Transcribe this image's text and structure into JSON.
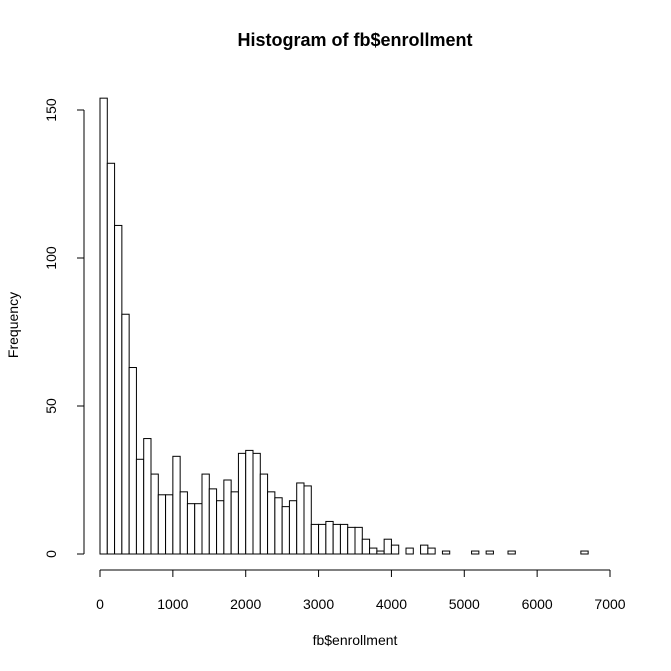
{
  "chart_data": {
    "type": "bar",
    "title": "Histogram of fb$enrollment",
    "xlabel": "fb$enrollment",
    "ylabel": "Frequency",
    "bin_width": 100,
    "x_start": 0,
    "xlim": [
      0,
      7000
    ],
    "ylim": [
      0,
      154
    ],
    "x_ticks": [
      0,
      1000,
      2000,
      3000,
      4000,
      5000,
      6000,
      7000
    ],
    "y_ticks": [
      0,
      50,
      100,
      150
    ],
    "values": [
      154,
      132,
      111,
      81,
      63,
      32,
      39,
      27,
      20,
      20,
      33,
      21,
      17,
      17,
      27,
      22,
      18,
      25,
      21,
      34,
      35,
      34,
      27,
      21,
      19,
      16,
      18,
      24,
      23,
      10,
      10,
      11,
      10,
      10,
      9,
      9,
      5,
      2,
      1,
      5,
      3,
      0,
      2,
      0,
      3,
      2,
      0,
      1,
      0,
      0,
      0,
      1,
      0,
      1,
      0,
      0,
      1,
      0,
      0,
      0,
      0,
      0,
      0,
      0,
      0,
      0,
      1,
      0,
      0,
      0
    ]
  }
}
